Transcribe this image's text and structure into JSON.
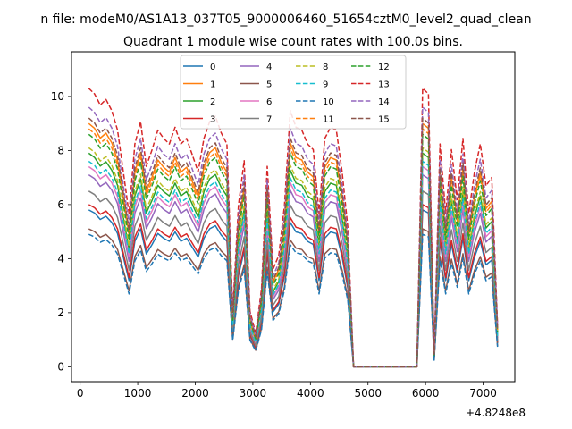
{
  "figure": {
    "suptitle": "n file: modeM0/AS1A13_037T05_9000006460_51654cztM0_level2_quad_clean",
    "title": "Quadrant 1 module wise count rates with 100.0s bins.",
    "offset_label": "+4.8248e8"
  },
  "chart_data": {
    "type": "line",
    "title": "Quadrant 1 module wise count rates with 100.0s bins.",
    "xlabel": "",
    "ylabel": "",
    "x_offset": 482480000,
    "xlim": [
      -150,
      7550
    ],
    "ylim": [
      -0.55,
      11.65
    ],
    "xticks": [
      0,
      1000,
      2000,
      3000,
      4000,
      5000,
      6000,
      7000
    ],
    "xtick_labels": [
      "0",
      "1000",
      "2000",
      "3000",
      "4000",
      "5000",
      "6000",
      "7000"
    ],
    "yticks": [
      0,
      2,
      4,
      6,
      8,
      10
    ],
    "ytick_labels": [
      "0",
      "2",
      "4",
      "6",
      "8",
      "10"
    ],
    "grid": false,
    "legend": {
      "placement": "upper-center",
      "columns": 4
    },
    "x": [
      150,
      250,
      350,
      450,
      550,
      650,
      750,
      850,
      950,
      1050,
      1150,
      1250,
      1350,
      1450,
      1550,
      1650,
      1750,
      1850,
      1950,
      2050,
      2150,
      2250,
      2350,
      2450,
      2550,
      2650,
      2750,
      2850,
      2950,
      3050,
      3150,
      3250,
      3350,
      3450,
      3550,
      3650,
      3750,
      3850,
      3950,
      4050,
      4150,
      4250,
      4350,
      4450,
      4550,
      4650,
      4750,
      4850,
      4950,
      5050,
      5150,
      5250,
      5350,
      5450,
      5550,
      5650,
      5750,
      5850,
      5950,
      6050,
      6150,
      6250,
      6350,
      6450,
      6550,
      6650,
      6750,
      6850,
      6950,
      7050,
      7150,
      7250
    ],
    "base_profile": [
      1.0,
      0.98,
      0.94,
      0.96,
      0.92,
      0.85,
      0.7,
      0.55,
      0.8,
      0.88,
      0.72,
      0.78,
      0.85,
      0.82,
      0.8,
      0.86,
      0.8,
      0.82,
      0.76,
      0.7,
      0.82,
      0.88,
      0.9,
      0.84,
      0.8,
      0.2,
      0.58,
      0.74,
      0.2,
      0.12,
      0.28,
      0.72,
      0.35,
      0.4,
      0.58,
      0.92,
      0.86,
      0.85,
      0.8,
      0.78,
      0.55,
      0.82,
      0.86,
      0.85,
      0.7,
      0.5,
      0.0,
      0.0,
      0.0,
      0.0,
      0.0,
      0.0,
      0.0,
      0.0,
      0.0,
      0.0,
      0.0,
      0.0,
      1.0,
      0.98,
      0.05,
      0.8,
      0.55,
      0.78,
      0.6,
      0.82,
      0.55,
      0.7,
      0.8,
      0.65,
      0.68,
      0.15
    ],
    "series": [
      {
        "name": "0",
        "color": "#1f77b4",
        "dashed": false,
        "level": 5.8
      },
      {
        "name": "1",
        "color": "#ff7f0e",
        "dashed": false,
        "level": 9.0
      },
      {
        "name": "2",
        "color": "#2ca02c",
        "dashed": false,
        "level": 7.9
      },
      {
        "name": "3",
        "color": "#d62728",
        "dashed": false,
        "level": 6.0
      },
      {
        "name": "4",
        "color": "#9467bd",
        "dashed": false,
        "level": 7.1
      },
      {
        "name": "5",
        "color": "#8c564b",
        "dashed": false,
        "level": 5.1
      },
      {
        "name": "6",
        "color": "#e377c2",
        "dashed": false,
        "level": 7.4
      },
      {
        "name": "7",
        "color": "#7f7f7f",
        "dashed": false,
        "level": 6.5
      },
      {
        "name": "8",
        "color": "#bcbd22",
        "dashed": true,
        "level": 8.1
      },
      {
        "name": "9",
        "color": "#17becf",
        "dashed": true,
        "level": 7.6
      },
      {
        "name": "10",
        "color": "#1f77b4",
        "dashed": true,
        "level": 4.9
      },
      {
        "name": "11",
        "color": "#ff7f0e",
        "dashed": true,
        "level": 8.8
      },
      {
        "name": "12",
        "color": "#2ca02c",
        "dashed": true,
        "level": 8.6
      },
      {
        "name": "13",
        "color": "#d62728",
        "dashed": true,
        "level": 10.3
      },
      {
        "name": "14",
        "color": "#9467bd",
        "dashed": true,
        "level": 9.6
      },
      {
        "name": "15",
        "color": "#8c564b",
        "dashed": true,
        "level": 9.2
      }
    ]
  }
}
